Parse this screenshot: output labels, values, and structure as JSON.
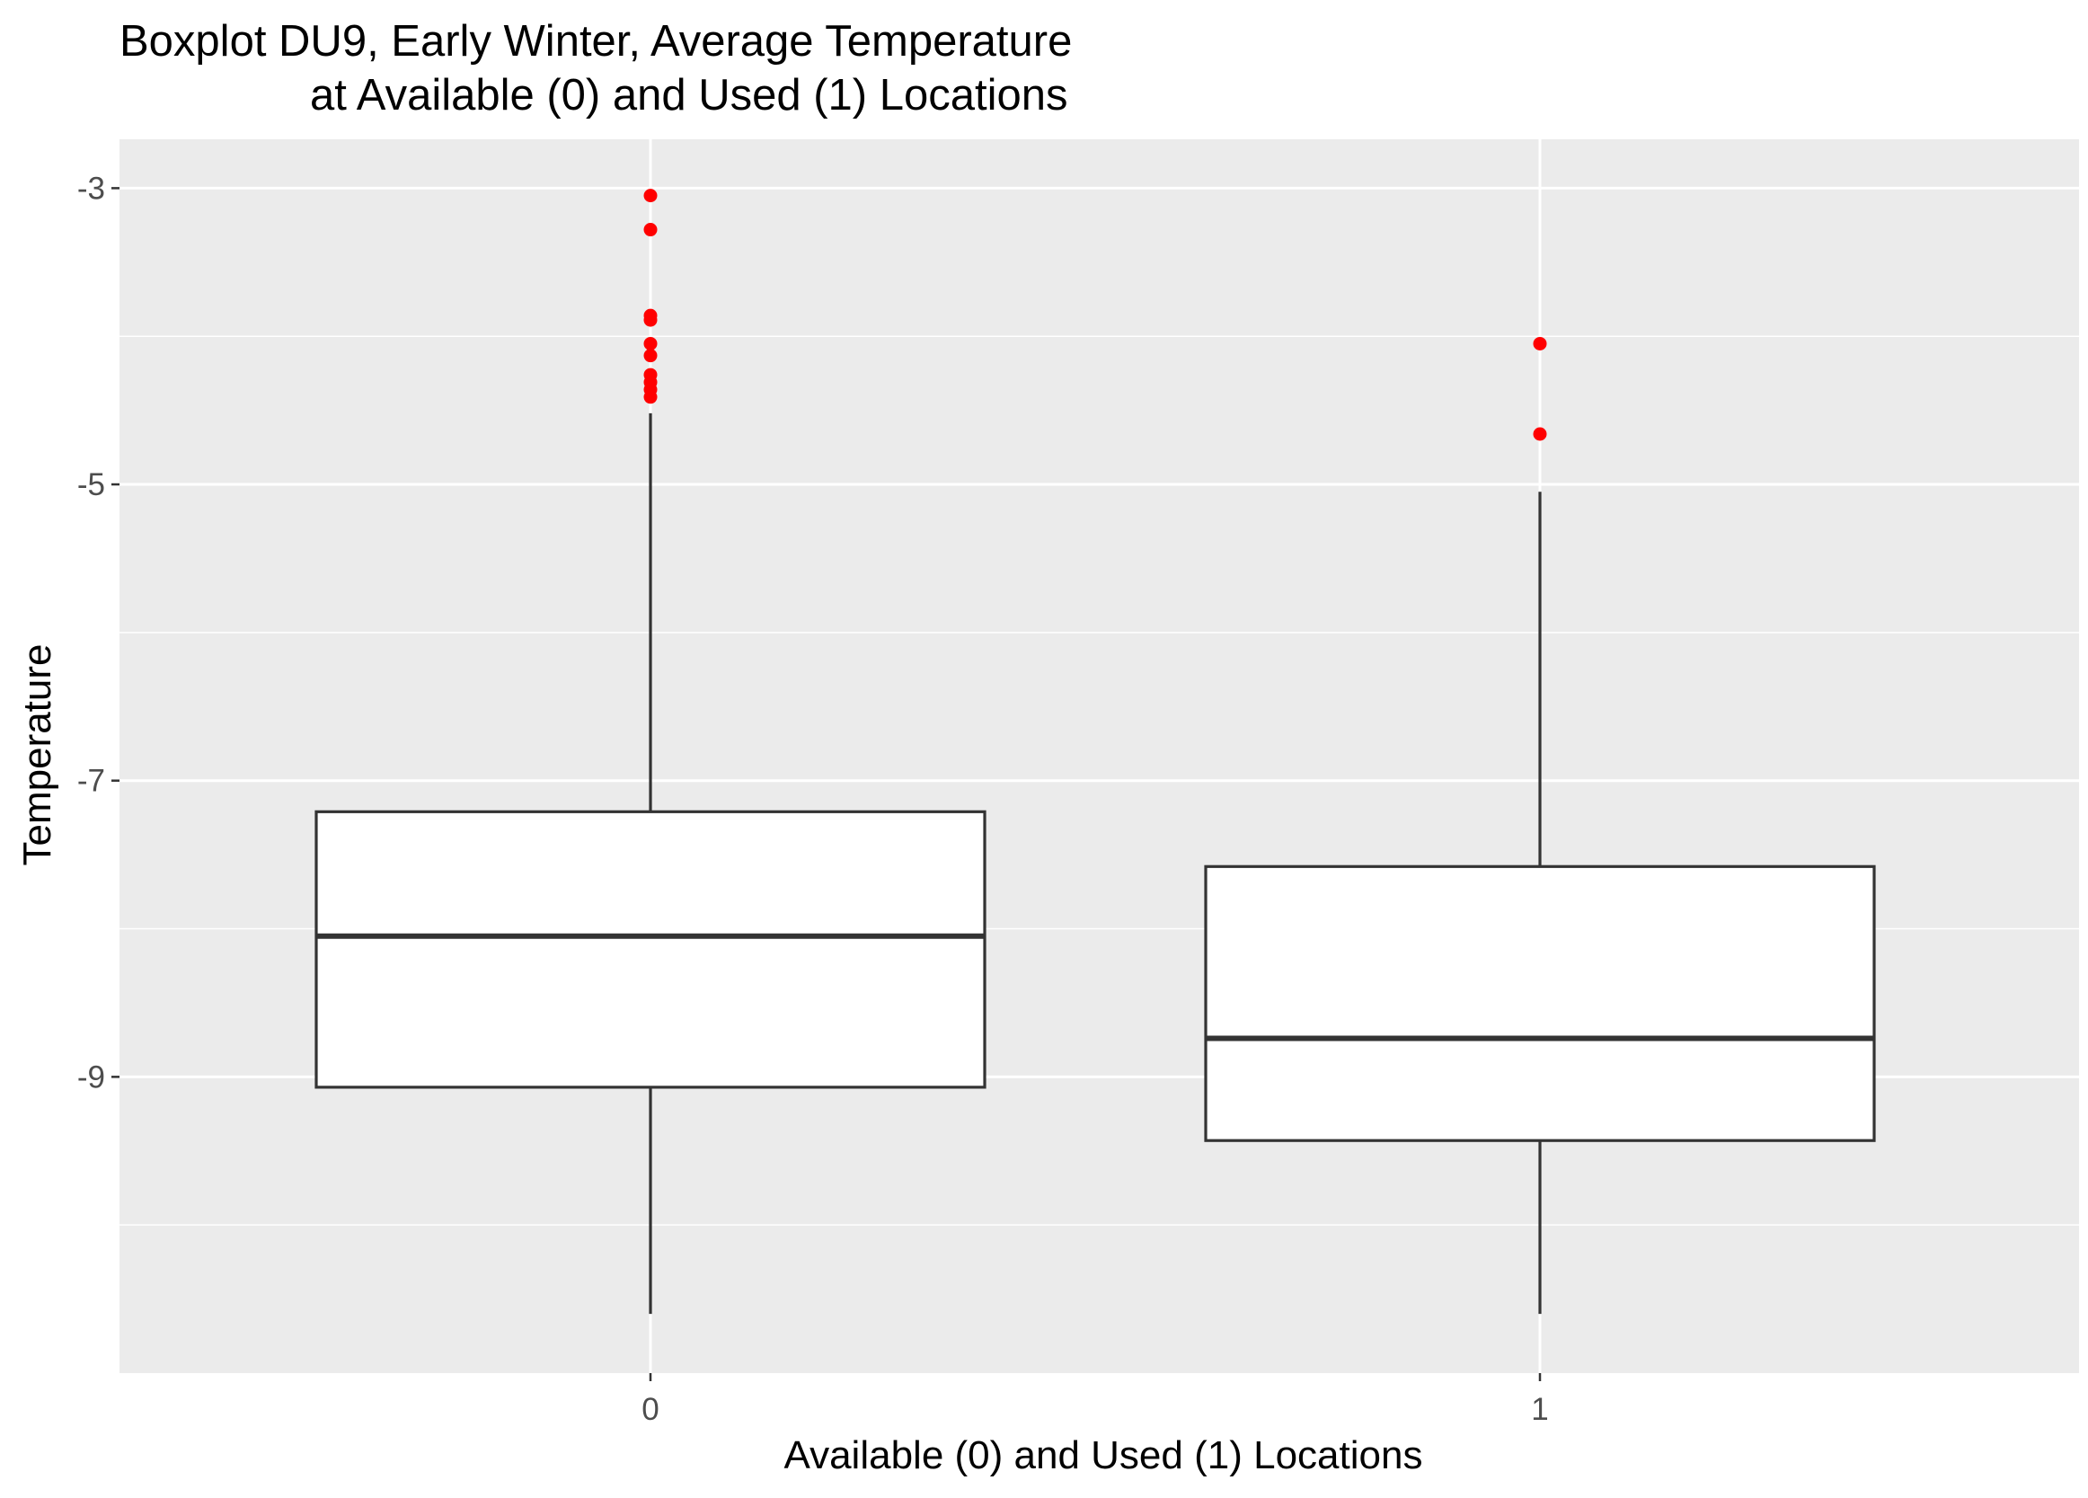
{
  "chart_data": {
    "type": "boxplot",
    "title": "Boxplot DU9, Early Winter, Average Temperature",
    "subtitle": "at Available (0) and Used (1) Locations",
    "xlabel": "Available (0) and Used (1) Locations",
    "ylabel": "Temperature",
    "categories": [
      "0",
      "1"
    ],
    "ylim": [
      -11.0,
      -2.67
    ],
    "y_ticks": [
      -3,
      -5,
      -7,
      -9
    ],
    "y_tick_labels": [
      "-3",
      "-5",
      "-7",
      "-9"
    ],
    "grid": true,
    "legend": "none",
    "colors": {
      "panel_background": "#ebebeb",
      "grid": "#ffffff",
      "box_fill": "#ffffff",
      "box_line": "#333333",
      "outlier": "#ff0000",
      "tick_label": "#4d4d4d"
    },
    "boxes": [
      {
        "category": "0",
        "whisker_low": -10.6,
        "q1": -9.07,
        "median": -8.05,
        "q3": -7.21,
        "whisker_high": -4.52,
        "outliers": [
          -3.05,
          -3.28,
          -3.86,
          -3.89,
          -4.05,
          -4.13,
          -4.26,
          -4.31,
          -4.36,
          -4.41
        ]
      },
      {
        "category": "1",
        "whisker_low": -10.6,
        "q1": -9.43,
        "median": -8.74,
        "q3": -7.58,
        "whisker_high": -5.05,
        "outliers": [
          -4.05,
          -4.66
        ]
      }
    ]
  }
}
